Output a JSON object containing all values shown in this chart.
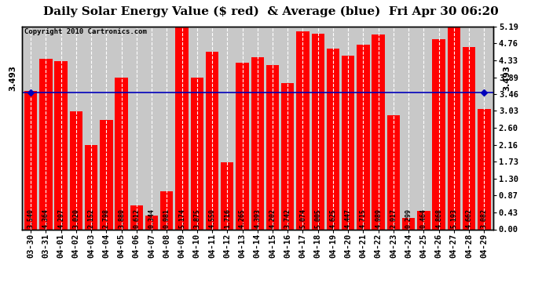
{
  "title": "Daily Solar Energy Value ($ red)  & Average (blue)  Fri Apr 30 06:20",
  "copyright": "Copyright 2010 Cartronics.com",
  "categories": [
    "03-30",
    "03-31",
    "04-01",
    "04-02",
    "04-03",
    "04-04",
    "04-05",
    "04-06",
    "04-07",
    "04-08",
    "04-09",
    "04-10",
    "04-11",
    "04-12",
    "04-13",
    "04-14",
    "04-15",
    "04-16",
    "04-17",
    "04-18",
    "04-19",
    "04-20",
    "04-21",
    "04-22",
    "04-23",
    "04-24",
    "04-25",
    "04-26",
    "04-27",
    "04-28",
    "04-29"
  ],
  "values": [
    3.54,
    4.364,
    4.297,
    3.02,
    2.152,
    2.798,
    3.88,
    0.612,
    0.344,
    0.981,
    5.174,
    3.875,
    4.55,
    1.716,
    4.265,
    4.393,
    4.202,
    3.742,
    5.074,
    5.005,
    4.625,
    4.447,
    4.715,
    4.989,
    2.917,
    0.299,
    0.464,
    4.868,
    5.193,
    4.662,
    3.082
  ],
  "average": 3.493,
  "bar_color": "#ff0000",
  "avg_line_color": "#0000bb",
  "background_color": "#ffffff",
  "plot_bg_color": "#c8c8c8",
  "grid_color": "#ffffff",
  "yticks_right": [
    0.0,
    0.43,
    0.87,
    1.3,
    1.73,
    2.16,
    2.6,
    3.03,
    3.46,
    3.89,
    4.33,
    4.76,
    5.19
  ],
  "ylim": [
    0,
    5.19
  ],
  "title_fontsize": 11,
  "bar_label_fontsize": 6,
  "tick_fontsize": 7.5,
  "avg_label": "3.493",
  "avg_marker_color": "#0000bb"
}
